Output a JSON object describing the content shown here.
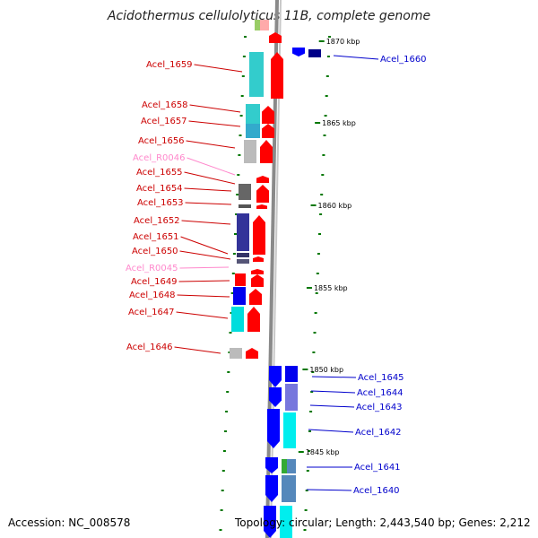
{
  "title": "Acidothermus cellulolyticus 11B, complete genome",
  "footer": {
    "accession": "Accession: NC_008578",
    "topology": "Topology: circular; Length: 2,443,540 bp; Genes: 2,212"
  },
  "colors": {
    "backbone": "#8a8a8a",
    "forward_cds": "#ff0000",
    "reverse_cds": "#0000ff",
    "forward_label": "#cc0000",
    "reverse_label": "#0000cc",
    "rna_label": "#ff88cc",
    "tick": "#007700"
  },
  "ticks": [
    {
      "label": "1870 kbp"
    },
    {
      "label": "1865 kbp"
    },
    {
      "label": "1860 kbp"
    },
    {
      "label": "1855 kbp"
    },
    {
      "label": "1850 kbp"
    },
    {
      "label": "1845 kbp"
    }
  ],
  "genes_left": [
    {
      "name": "Acel_1659",
      "type": "cds"
    },
    {
      "name": "Acel_1658",
      "type": "cds"
    },
    {
      "name": "Acel_1657",
      "type": "cds"
    },
    {
      "name": "Acel_1656",
      "type": "cds"
    },
    {
      "name": "Acel_R0046",
      "type": "rna"
    },
    {
      "name": "Acel_1655",
      "type": "cds"
    },
    {
      "name": "Acel_1654",
      "type": "cds"
    },
    {
      "name": "Acel_1653",
      "type": "cds"
    },
    {
      "name": "Acel_1652",
      "type": "cds"
    },
    {
      "name": "Acel_1651",
      "type": "cds"
    },
    {
      "name": "Acel_1650",
      "type": "cds"
    },
    {
      "name": "Acel_R0045",
      "type": "rna"
    },
    {
      "name": "Acel_1649",
      "type": "cds"
    },
    {
      "name": "Acel_1648",
      "type": "cds"
    },
    {
      "name": "Acel_1647",
      "type": "cds"
    },
    {
      "name": "Acel_1646",
      "type": "cds"
    }
  ],
  "genes_right": [
    {
      "name": "Acel_1660",
      "type": "cds"
    },
    {
      "name": "Acel_1645",
      "type": "cds"
    },
    {
      "name": "Acel_1644",
      "type": "cds"
    },
    {
      "name": "Acel_1643",
      "type": "cds"
    },
    {
      "name": "Acel_1642",
      "type": "cds"
    },
    {
      "name": "Acel_1641",
      "type": "cds"
    },
    {
      "name": "Acel_1640",
      "type": "cds"
    }
  ]
}
